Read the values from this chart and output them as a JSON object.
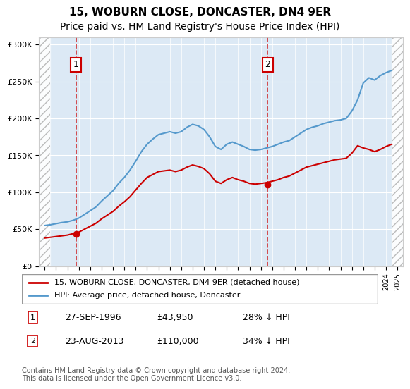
{
  "title": "15, WOBURN CLOSE, DONCASTER, DN4 9ER",
  "subtitle": "Price paid vs. HM Land Registry's House Price Index (HPI)",
  "title_fontsize": 11,
  "subtitle_fontsize": 10,
  "ylabel_ticks": [
    "£0",
    "£50K",
    "£100K",
    "£150K",
    "£200K",
    "£250K",
    "£300K"
  ],
  "ytick_vals": [
    0,
    50000,
    100000,
    150000,
    200000,
    250000,
    300000
  ],
  "ylim": [
    0,
    310000
  ],
  "xlim_start": 1993.5,
  "xlim_end": 2025.5,
  "hatch_left_end": 1994.5,
  "hatch_right_start": 2024.5,
  "vline1_x": 1996.75,
  "vline2_x": 2013.6,
  "purchase1_x": 1996.75,
  "purchase1_y": 43950,
  "purchase2_x": 2013.6,
  "purchase2_y": 110000,
  "legend_label_red": "15, WOBURN CLOSE, DONCASTER, DN4 9ER (detached house)",
  "legend_label_blue": "HPI: Average price, detached house, Doncaster",
  "annotation1_num": "1",
  "annotation1_date": "27-SEP-1996",
  "annotation1_price": "£43,950",
  "annotation1_hpi": "28% ↓ HPI",
  "annotation2_num": "2",
  "annotation2_date": "23-AUG-2013",
  "annotation2_price": "£110,000",
  "annotation2_hpi": "34% ↓ HPI",
  "footer": "Contains HM Land Registry data © Crown copyright and database right 2024.\nThis data is licensed under the Open Government Licence v3.0.",
  "bg_color": "#dce9f5",
  "plot_bg": "#dce9f5",
  "line_red": "#cc0000",
  "line_blue": "#5599cc",
  "hpi_x": [
    1994,
    1994.5,
    1995,
    1995.5,
    1996,
    1996.5,
    1997,
    1997.5,
    1998,
    1998.5,
    1999,
    1999.5,
    2000,
    2000.5,
    2001,
    2001.5,
    2002,
    2002.5,
    2003,
    2003.5,
    2004,
    2004.5,
    2005,
    2005.5,
    2006,
    2006.5,
    2007,
    2007.5,
    2008,
    2008.5,
    2009,
    2009.5,
    2010,
    2010.5,
    2011,
    2011.5,
    2012,
    2012.5,
    2013,
    2013.5,
    2014,
    2014.5,
    2015,
    2015.5,
    2016,
    2016.5,
    2017,
    2017.5,
    2018,
    2018.5,
    2019,
    2019.5,
    2020,
    2020.5,
    2021,
    2021.5,
    2022,
    2022.5,
    2023,
    2023.5,
    2024,
    2024.5
  ],
  "hpi_y": [
    55000,
    56000,
    57500,
    59000,
    60000,
    62000,
    65000,
    70000,
    75000,
    80000,
    88000,
    95000,
    102000,
    112000,
    120000,
    130000,
    142000,
    155000,
    165000,
    172000,
    178000,
    180000,
    182000,
    180000,
    182000,
    188000,
    192000,
    190000,
    185000,
    175000,
    162000,
    158000,
    165000,
    168000,
    165000,
    162000,
    158000,
    157000,
    158000,
    160000,
    162000,
    165000,
    168000,
    170000,
    175000,
    180000,
    185000,
    188000,
    190000,
    193000,
    195000,
    197000,
    198000,
    200000,
    210000,
    225000,
    248000,
    255000,
    252000,
    258000,
    262000,
    265000
  ],
  "red_x": [
    1994,
    1994.5,
    1995,
    1995.5,
    1996,
    1996.5,
    1997,
    1997.5,
    1998,
    1998.5,
    1999,
    1999.5,
    2000,
    2000.5,
    2001,
    2001.5,
    2002,
    2002.5,
    2003,
    2003.5,
    2004,
    2004.5,
    2005,
    2005.5,
    2006,
    2006.5,
    2007,
    2007.5,
    2008,
    2008.5,
    2009,
    2009.5,
    2010,
    2010.5,
    2011,
    2011.5,
    2012,
    2012.5,
    2013,
    2013.5,
    2014,
    2014.5,
    2015,
    2015.5,
    2016,
    2016.5,
    2017,
    2017.5,
    2018,
    2018.5,
    2019,
    2019.5,
    2020,
    2020.5,
    2021,
    2021.5,
    2022,
    2022.5,
    2023,
    2023.5,
    2024,
    2024.5
  ],
  "red_y": [
    38000,
    39000,
    40000,
    41000,
    42000,
    43950,
    46000,
    50000,
    54000,
    58000,
    64000,
    69000,
    74000,
    81000,
    87000,
    94000,
    103000,
    112000,
    120000,
    124000,
    128000,
    129000,
    130000,
    128000,
    130000,
    134000,
    137000,
    135000,
    132000,
    125000,
    115000,
    112000,
    117000,
    120000,
    117000,
    115000,
    112000,
    111000,
    112000,
    113000,
    115000,
    117000,
    120000,
    122000,
    126000,
    130000,
    134000,
    136000,
    138000,
    140000,
    142000,
    144000,
    145000,
    146000,
    153000,
    163000,
    160000,
    158000,
    155000,
    158000,
    162000,
    165000
  ]
}
